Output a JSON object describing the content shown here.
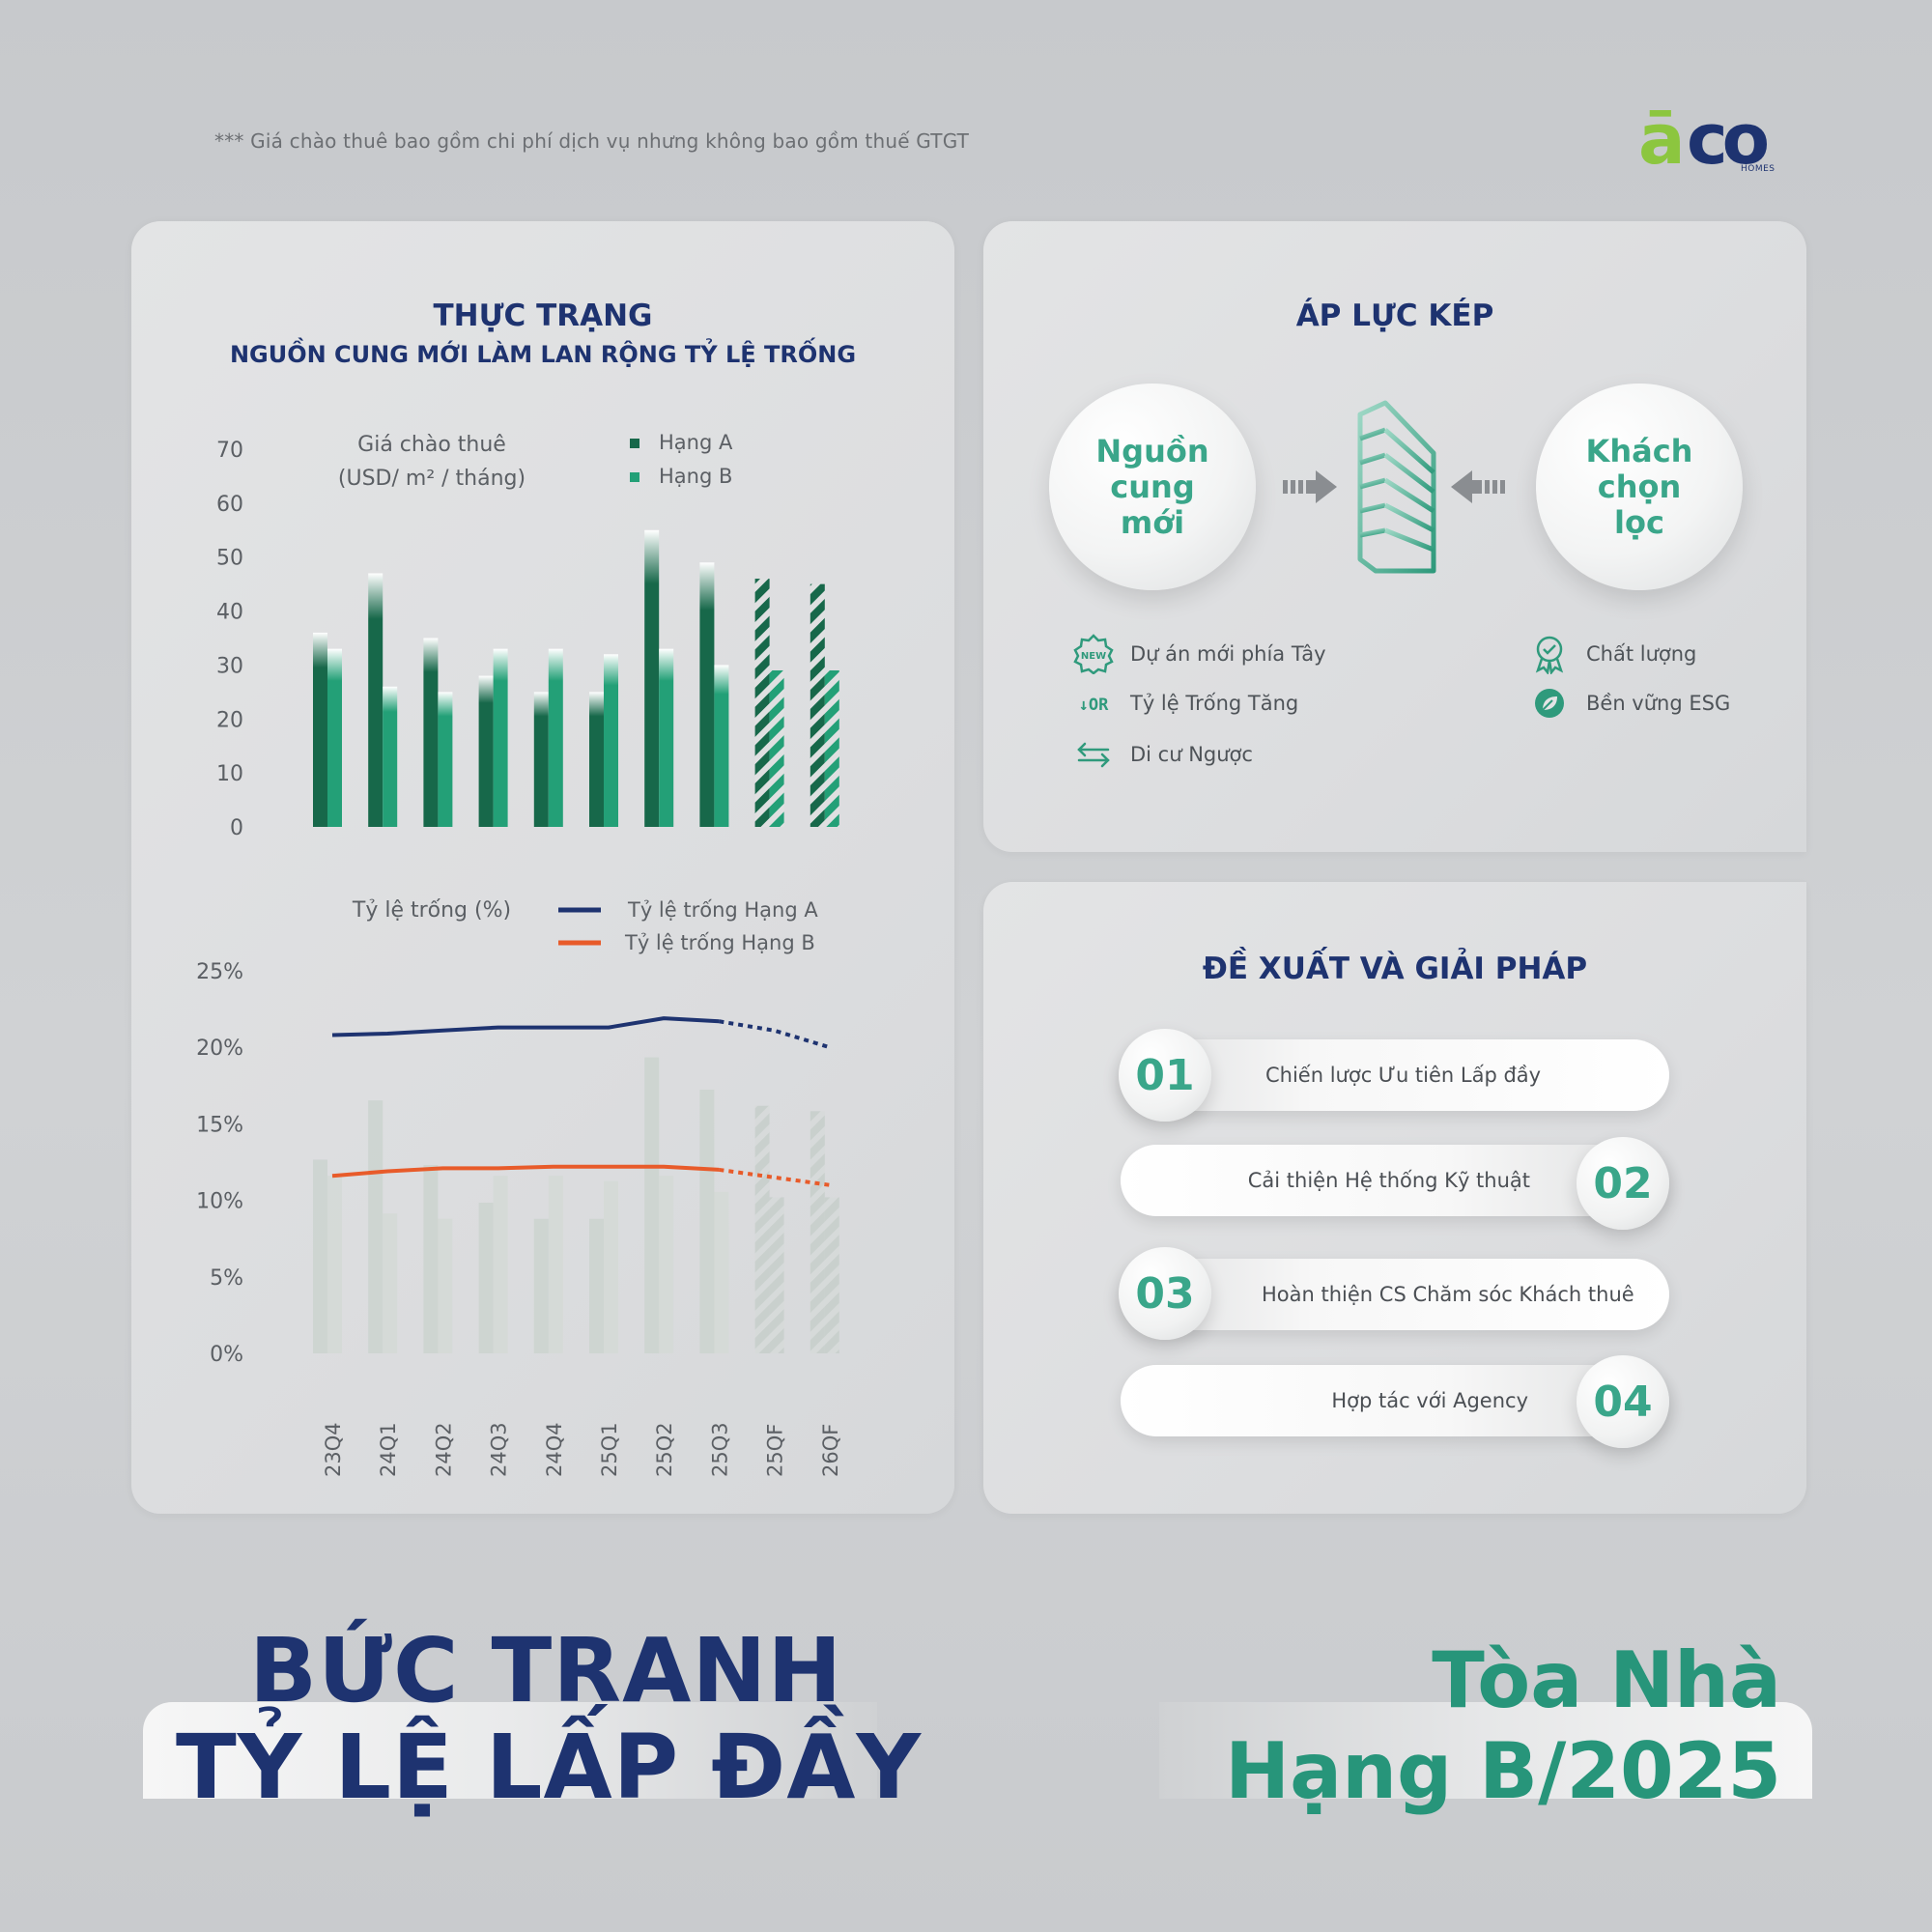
{
  "note": "*** Giá chào thuê bao gồm chi phí dịch vụ nhưng không bao gồm thuế GTGT",
  "logo": {
    "a": "ā",
    "co": "co",
    "sub": "HOMES"
  },
  "left_panel": {
    "title": "THỰC TRẠNG",
    "subtitle": "NGUỒN CUNG MỚI LÀM LAN RỘNG TỶ LỆ TRỐNG"
  },
  "right_top": {
    "title": "ÁP LỰC KÉP",
    "left_bubble": "Nguồn cung mới",
    "right_bubble": "Khách chọn lọc",
    "left_factors": [
      {
        "icon": "new-badge-icon",
        "label": "Dự án mới phía Tây"
      },
      {
        "icon": "vacancy-down-icon",
        "label": "Tỷ lệ Trống Tăng"
      },
      {
        "icon": "swap-arrows-icon",
        "label": "Di cư Ngược"
      }
    ],
    "right_factors": [
      {
        "icon": "quality-award-icon",
        "label": "Chất lượng"
      },
      {
        "icon": "leaf-icon",
        "label": "Bền vững ESG"
      }
    ]
  },
  "right_bottom": {
    "title": "ĐỀ XUẤT VÀ GIẢI PHÁP",
    "items": [
      {
        "num": "01",
        "label": "Chiến lược Ưu tiên Lấp đầy"
      },
      {
        "num": "02",
        "label": "Cải thiện Hệ thống Kỹ thuật"
      },
      {
        "num": "03",
        "label": "Hoàn thiện CS Chăm sóc Khách thuê"
      },
      {
        "num": "04",
        "label": "Hợp tác với Agency"
      }
    ]
  },
  "headline": {
    "line1": "BỨC TRANH",
    "line2": "TỶ LỆ LẤP ĐẦY",
    "right1": "Tòa Nhà",
    "right2": "Hạng B/2025"
  },
  "colors": {
    "navy": "#1e3370",
    "green_dark": "#17684a",
    "green_light": "#23a077",
    "teal": "#3aa68a",
    "orange": "#e85b2a"
  },
  "chart_data": [
    {
      "type": "bar",
      "title": "",
      "ylabel": "Giá chào thuê",
      "yunit": "(USD/ m² / tháng)",
      "ylim": [
        0,
        70
      ],
      "yticks": [
        0,
        10,
        20,
        30,
        40,
        50,
        60,
        70
      ],
      "categories": [
        "23Q4",
        "24Q1",
        "24Q2",
        "24Q3",
        "24Q4",
        "25Q1",
        "25Q2",
        "25Q3",
        "25QF",
        "26QF"
      ],
      "forecast_from_index": 8,
      "series": [
        {
          "name": "Hạng A",
          "color": "#17684a",
          "values": [
            36,
            47,
            35,
            28,
            25,
            25,
            55,
            49,
            46,
            45
          ]
        },
        {
          "name": "Hạng B",
          "color": "#23a077",
          "values": [
            33,
            26,
            25,
            33,
            33,
            32,
            33,
            30,
            29,
            29
          ]
        }
      ]
    },
    {
      "type": "line",
      "title": "",
      "ylabel": "Tỷ lệ trống (%)",
      "ylim": [
        0,
        25
      ],
      "yticks": [
        "0%",
        "5%",
        "10%",
        "15%",
        "20%",
        "25%"
      ],
      "categories": [
        "23Q4",
        "24Q1",
        "24Q2",
        "24Q3",
        "24Q4",
        "25Q1",
        "25Q2",
        "25Q3",
        "25QF",
        "26QF"
      ],
      "forecast_from_index": 7,
      "series": [
        {
          "name": "Tỷ lệ trống Hạng A",
          "color": "#1e3370",
          "values": [
            20.8,
            20.9,
            21.1,
            21.3,
            21.3,
            21.3,
            21.9,
            21.7,
            21.1,
            20.0
          ]
        },
        {
          "name": "Tỷ lệ trống  Hạng B",
          "color": "#e85b2a",
          "values": [
            11.6,
            11.9,
            12.1,
            12.1,
            12.2,
            12.2,
            12.2,
            12.0,
            11.5,
            11.0
          ]
        }
      ]
    }
  ]
}
